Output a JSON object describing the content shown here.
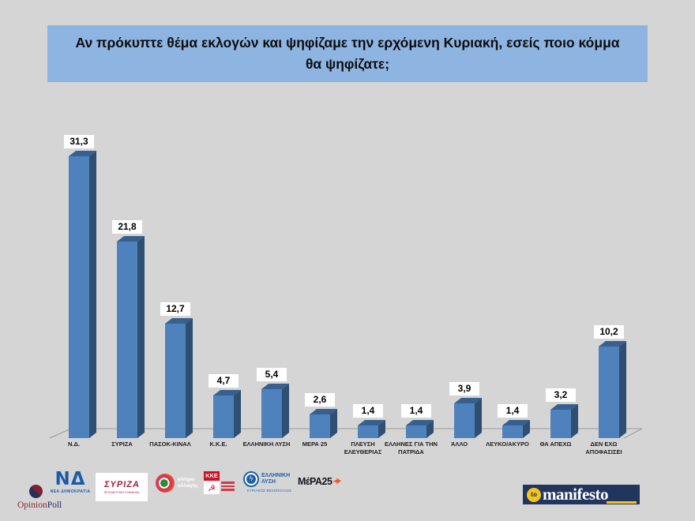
{
  "title": "Αν πρόκυπτε θέμα εκλογών και ψηφίζαμε την ερχόμενη Κυριακή, εσείς ποιο κόμμα θα ψηφίζατε;",
  "chart_data": {
    "type": "bar",
    "style": "3d-column",
    "categories": [
      "Ν.Δ.",
      "ΣΥΡΙΖΑ",
      "ΠΑΣΟΚ-ΚΙΝΑΛ",
      "Κ.Κ.Ε.",
      "ΕΛΛΗΝΙΚΗ ΛΥΣΗ",
      "ΜΕΡΑ 25",
      "ΠΛΕΥΣΗ ΕΛΕΥΘΕΡΙΑΣ",
      "ΕΛΛΗΝΕΣ ΓΙΑ ΤΗΝ ΠΑΤΡΙΔΑ",
      "ΆΛΛΟ",
      "ΛΕΥΚΟ/ΑΚΥΡΟ",
      "ΘΑ ΑΠΕΧΩ",
      "ΔΕΝ ΕΧΩ ΑΠΟΦΑΣΙΣΕΙ"
    ],
    "values": [
      31.3,
      21.8,
      12.7,
      4.7,
      5.4,
      2.6,
      1.4,
      1.4,
      3.9,
      1.4,
      3.2,
      10.2
    ],
    "value_labels": [
      "31,3",
      "21,8",
      "12,7",
      "4,7",
      "5,4",
      "2,6",
      "1,4",
      "1,4",
      "3,9",
      "1,4",
      "3,2",
      "10,2"
    ],
    "title": "Αν πρόκυπτε θέμα εκλογών και ψηφίζαμε την ερχόμενη Κυριακή, εσείς ποιο κόμμα θα ψηφίζατε;",
    "xlabel": "",
    "ylabel": "",
    "ylim": [
      0,
      35
    ],
    "grid": false,
    "legend": "none",
    "bar_color_front": "#4F81BD",
    "bar_color_side": "#2E4E72",
    "bar_color_top": "#38608F"
  },
  "colors": {
    "background": "#d5d5d5",
    "title_box": "#8EB4E2",
    "value_chip_bg": "#ffffff",
    "floor_line": "#9b9b9b",
    "manifesto_navy": "#22355E",
    "manifesto_yellow": "#F5C518",
    "kke_red": "#CE1126",
    "nd_blue": "#1A5CA8",
    "syriza_red": "#A02040",
    "el_blue": "#2060A8"
  },
  "pollster": {
    "name_part1": "Opinion",
    "name_part2": "Poll"
  },
  "party_logos": [
    {
      "monogram": "ΝΔ",
      "name": "ΝΕΑ ΔΗΜΟΚΡΑΤΙΑ"
    },
    {
      "name": "ΣΥΡΙΖΑ",
      "subtitle": "ΠΡΟΟΔΕΥΤΙΚΗ ΣΥΜΜΑΧΙΑ"
    },
    {
      "name": "κίνημα αλλαγής"
    },
    {
      "name": "ΚΚΕ",
      "emblem": "☭"
    },
    {
      "name": "ΕΛΛΗΝΙΚΗ ΛΥΣΗ",
      "subtitle": "ΚΥΡΙΑΚΟΣ ΒΕΛΟΠΟΥΛΟΣ",
      "bolt": "ϟ"
    },
    {
      "name": "ΜέΡΑ25"
    }
  ],
  "media": {
    "prefix": "to",
    "name": "manifesto"
  }
}
